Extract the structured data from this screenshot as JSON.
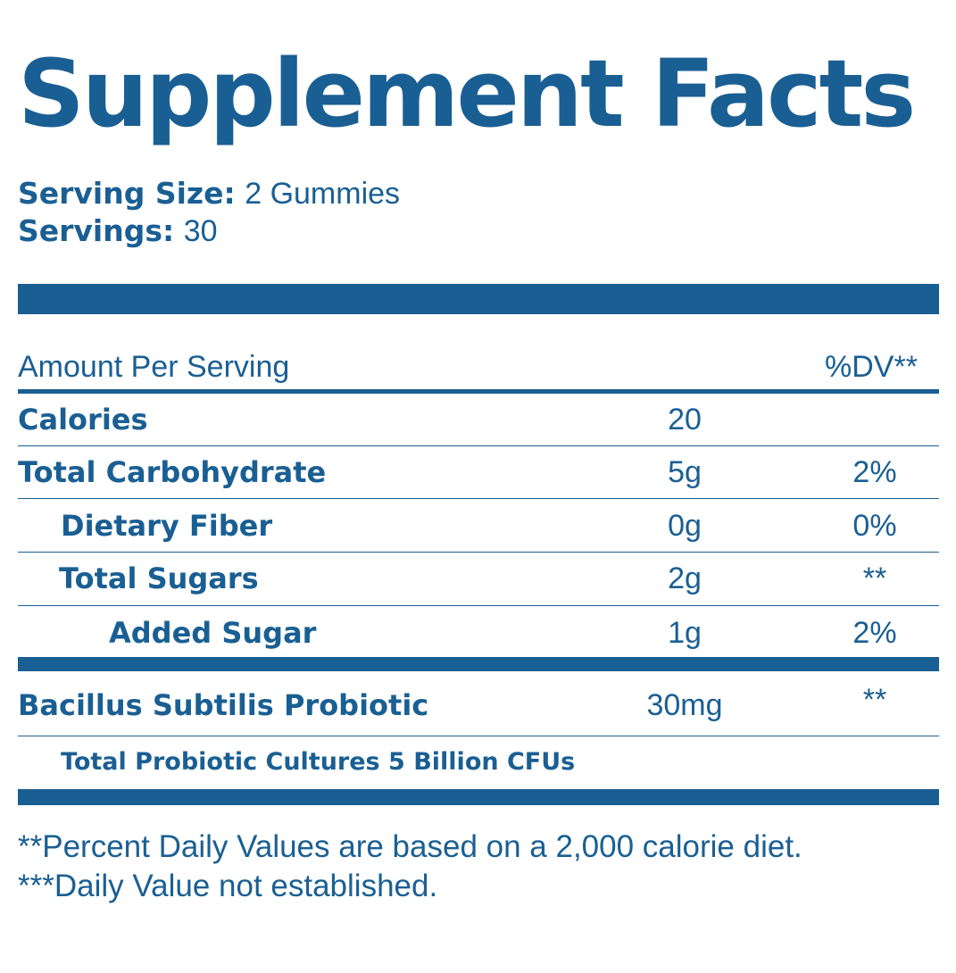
{
  "label": {
    "title": "Supplement Facts",
    "serving_size_label": "Serving Size:",
    "serving_size_value": "2 Gummies",
    "servings_label": "Servings:",
    "servings_value": "30",
    "header_amount": "Amount Per Serving",
    "header_dv": "%DV**",
    "rows": [
      {
        "name": "Calories",
        "amount": "20",
        "dv": ""
      },
      {
        "name": "Total Carbohydrate",
        "amount": "5g",
        "dv": "2%"
      },
      {
        "name": "Dietary Fiber",
        "amount": "0g",
        "dv": "0%"
      },
      {
        "name": "Total Sugars",
        "amount": "2g",
        "dv": "**"
      },
      {
        "name": "Added Sugar",
        "amount": "1g",
        "dv": "2%"
      }
    ],
    "probiotic": {
      "name": "Bacillus Subtilis Probiotic",
      "amount": "30mg",
      "dv": "**"
    },
    "cultures": "Total Probiotic Cultures 5 Billion CFUs",
    "footnote_1": "**Percent Daily Values are based on a 2,000 calorie diet.",
    "footnote_2": "***Daily Value not established.",
    "color": "#1a5f93"
  }
}
